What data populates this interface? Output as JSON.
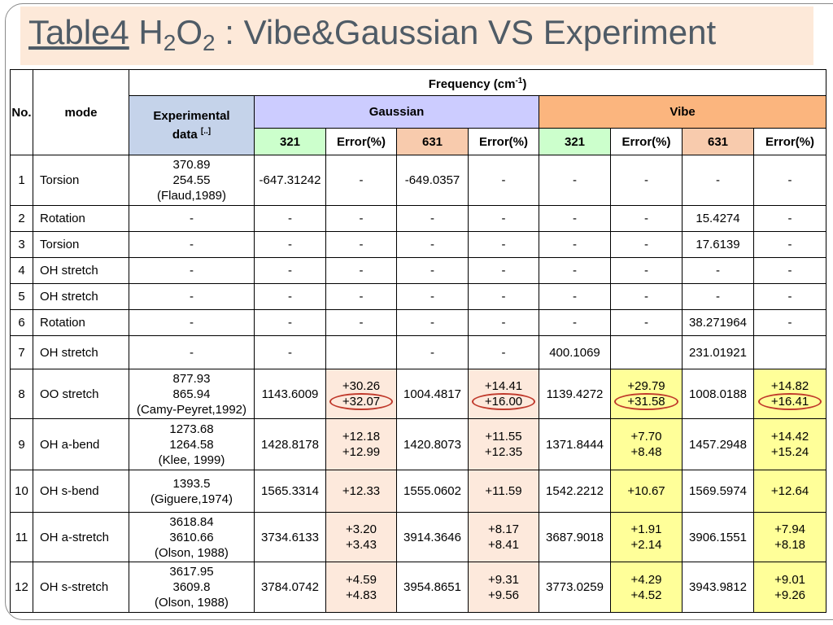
{
  "title": [
    "Table4",
    " H",
    "2",
    "O",
    "2",
    " : Vibe&Gaussian VS Experiment"
  ],
  "table": {
    "header": {
      "no": "No.",
      "mode": "mode",
      "frequency": [
        "Frequency (cm",
        "-1",
        ")"
      ],
      "experimental": [
        "Experimental data",
        "[..]"
      ],
      "gaussian": "Gaussian",
      "vibe": "Vibe",
      "columns": [
        "321",
        "Error(%)",
        "631",
        "Error(%)",
        "321",
        "Error(%)",
        "631",
        "Error(%)"
      ]
    },
    "rows": [
      [
        "1",
        "Torsion",
        [
          "370.89",
          "254.55",
          "(Flaud,1989)"
        ],
        "-647.31242",
        "-",
        "-649.0357",
        "-",
        "-",
        "-",
        "-",
        "-"
      ],
      [
        "2",
        "Rotation",
        "-",
        "-",
        "-",
        "-",
        "-",
        "-",
        "-",
        "15.4274",
        "-"
      ],
      [
        "3",
        "Torsion",
        "-",
        "-",
        "-",
        "-",
        "-",
        "-",
        "-",
        "17.6139",
        "-"
      ],
      [
        "4",
        "OH stretch",
        "-",
        "-",
        "-",
        "-",
        "-",
        "-",
        "-",
        "-",
        "-"
      ],
      [
        "5",
        "OH stretch",
        "-",
        "-",
        "-",
        "-",
        "-",
        "-",
        "-",
        "-",
        "-"
      ],
      [
        "6",
        "Rotation",
        "-",
        "-",
        "-",
        "-",
        "-",
        "-",
        "-",
        "38.271964",
        "-"
      ],
      [
        "7",
        "OH stretch",
        "-",
        "-",
        null,
        "-",
        "-",
        "400.1069",
        null,
        "231.01921",
        null
      ],
      [
        "8",
        "OO  stretch",
        [
          "877.93",
          "865.94",
          "(Camy-Peyret,1992)"
        ],
        "1143.6009",
        [
          "+30.26",
          "+32.07"
        ],
        "1004.4817",
        [
          "+14.41",
          "+16.00"
        ],
        "1139.4272",
        [
          "+29.79",
          "+31.58"
        ],
        "1008.0188",
        [
          "+14.82",
          "+16.41"
        ]
      ],
      [
        "9",
        "OH a-bend",
        [
          "1273.68",
          "1264.58",
          "(Klee, 1999)"
        ],
        "1428.8178",
        [
          "+12.18",
          "+12.99"
        ],
        "1420.8073",
        [
          "+11.55",
          "+12.35"
        ],
        "1371.8444",
        [
          "+7.70",
          "+8.48"
        ],
        "1457.2948",
        [
          "+14.42",
          "+15.24"
        ]
      ],
      [
        "10",
        "OH s-bend",
        [
          "1393.5",
          "(Giguere,1974)"
        ],
        "1565.3314",
        "+12.33",
        "1555.0602",
        "+11.59",
        "1542.2212",
        "+10.67",
        "1569.5974",
        "+12.64"
      ],
      [
        "11",
        "OH a-stretch",
        [
          "3618.84",
          "3610.66",
          "(Olson, 1988)"
        ],
        "3734.6133",
        [
          "+3.20",
          "+3.43"
        ],
        "3914.3646",
        [
          "+8.17",
          "+8.41"
        ],
        "3687.9018",
        [
          "+1.91",
          "+2.14"
        ],
        "3906.1551",
        [
          "+7.94",
          "+8.18"
        ]
      ],
      [
        "12",
        "OH s-stretch",
        [
          "3617.95",
          "3609.8",
          "(Olson, 1988)"
        ],
        "3784.0742",
        [
          "+4.59",
          "+4.83"
        ],
        "3954.8651",
        [
          "+9.31",
          "+9.56"
        ],
        "3773.0259",
        [
          "+4.29",
          "+4.52"
        ],
        "3943.9812",
        [
          "+9.01",
          "+9.26"
        ]
      ]
    ]
  }
}
